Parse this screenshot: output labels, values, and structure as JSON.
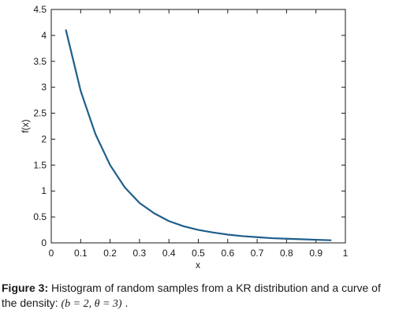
{
  "chart_data": {
    "type": "line",
    "title": "",
    "xlabel": "x",
    "ylabel": "f(x)",
    "xlim": [
      0,
      1
    ],
    "ylim": [
      0,
      4.5
    ],
    "xticks": [
      0,
      0.1,
      0.2,
      0.3,
      0.4,
      0.5,
      0.6,
      0.7,
      0.8,
      0.9,
      1
    ],
    "xtick_labels": [
      "0",
      "0.1",
      "0.2",
      "0.3",
      "0.4",
      "0.5",
      "0.6",
      "0.7",
      "0.8",
      "0.9",
      "1"
    ],
    "yticks": [
      0,
      0.5,
      1,
      1.5,
      2,
      2.5,
      3,
      3.5,
      4,
      4.5
    ],
    "ytick_labels": [
      "0",
      "0.5",
      "1",
      "1.5",
      "2",
      "2.5",
      "3",
      "3.5",
      "4",
      "4.5"
    ],
    "grid": false,
    "series": [
      {
        "color": "#1f5f8b",
        "x": [
          0.05,
          0.1,
          0.15,
          0.2,
          0.25,
          0.3,
          0.35,
          0.4,
          0.45,
          0.5,
          0.55,
          0.6,
          0.65,
          0.7,
          0.75,
          0.8,
          0.85,
          0.9,
          0.95
        ],
        "y": [
          4.1,
          2.93,
          2.1,
          1.5,
          1.07,
          0.77,
          0.57,
          0.42,
          0.32,
          0.25,
          0.2,
          0.16,
          0.13,
          0.11,
          0.09,
          0.08,
          0.07,
          0.06,
          0.05
        ]
      }
    ]
  },
  "caption": {
    "label": "Figure 3:",
    "text": "Histogram of random samples from a KR distribution and a curve of the density:",
    "formula": "(b = 2, θ = 3)",
    "end": "."
  }
}
